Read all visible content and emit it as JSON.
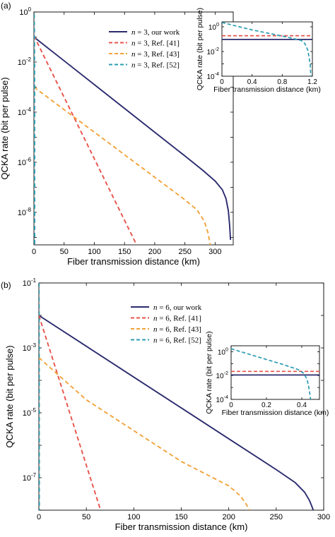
{
  "chart_data": [
    {
      "panel": "(a)",
      "type": "line",
      "xlabel": "Fiber transmission distance (km)",
      "ylabel": "QCKA rate (bit per pulse)",
      "xlim": [
        0,
        330
      ],
      "ylim_log10": [
        -9.3,
        0
      ],
      "log_y": true,
      "x_ticks": [
        0,
        50,
        100,
        150,
        200,
        250,
        300
      ],
      "y_ticks": [
        {
          "exp": 0,
          "label": "10^0"
        },
        {
          "exp": -2,
          "label": "10^-2"
        },
        {
          "exp": -4,
          "label": "10^-4"
        },
        {
          "exp": -6,
          "label": "10^-6"
        },
        {
          "exp": -8,
          "label": "10^-8"
        }
      ],
      "legend_position": "top-left",
      "series": [
        {
          "name": "n = 3, our work",
          "color": "#2a2a6e",
          "dash": false,
          "x": [
            0,
            50,
            100,
            150,
            200,
            250,
            280,
            300,
            312,
            318,
            322,
            324,
            325.5
          ],
          "log10_y": [
            -1.0,
            -1.95,
            -2.9,
            -3.85,
            -4.8,
            -5.75,
            -6.33,
            -6.75,
            -7.1,
            -7.45,
            -7.95,
            -8.5,
            -9.1
          ]
        },
        {
          "name": "n = 3, Ref. [41]",
          "color": "#e8534a",
          "dash": true,
          "x": [
            0,
            170
          ],
          "log10_y": [
            -0.95,
            -9.3
          ]
        },
        {
          "name": "n = 3, Ref. [43]",
          "color": "#f2a33a",
          "dash": true,
          "x": [
            0,
            100,
            200,
            250,
            270,
            282,
            288,
            292
          ],
          "log10_y": [
            -3.0,
            -4.8,
            -6.6,
            -7.5,
            -7.9,
            -8.35,
            -8.8,
            -9.3
          ]
        },
        {
          "name": "n = 3, Ref. [52]",
          "color": "#2a9db0",
          "dash": true,
          "x": [
            0.2,
            0.6,
            0.9,
            1.1,
            1.2
          ],
          "log10_y": [
            0.2,
            -0.4,
            -1.2,
            -3.0,
            -9.3
          ]
        }
      ],
      "inset": {
        "xlabel": "Fiber transmission distance (km)",
        "ylabel": "QCKA rate (bit per pulse)",
        "xlim": [
          0,
          1.2
        ],
        "x_ticks": [
          {
            "v": 0,
            "label": "0"
          },
          {
            "v": 0.4,
            "label": "0.4"
          },
          {
            "v": 0.8,
            "label": "0.8"
          },
          {
            "v": 1.2,
            "label": "1.2"
          }
        ],
        "ylim_log10": [
          -4,
          0.4
        ],
        "y_ticks": [
          {
            "exp": 0,
            "label": "10^0"
          },
          {
            "exp": -2,
            "label": "10^-2"
          },
          {
            "exp": -4,
            "label": "10^-4"
          }
        ],
        "series": [
          {
            "color": "#2a2a6e",
            "dash": false,
            "x": [
              0,
              1.2
            ],
            "log10_y": [
              -1.02,
              -1.02
            ]
          },
          {
            "color": "#e8534a",
            "dash": true,
            "x": [
              0,
              1.2
            ],
            "log10_y": [
              -0.72,
              -0.72
            ]
          },
          {
            "color": "#2a9db0",
            "dash": true,
            "x": [
              0,
              0.2,
              0.4,
              0.6,
              0.8,
              0.95,
              1.05,
              1.1,
              1.14,
              1.17,
              1.18
            ],
            "log10_y": [
              0.35,
              0.05,
              -0.25,
              -0.5,
              -0.75,
              -0.95,
              -1.1,
              -1.35,
              -1.9,
              -3.0,
              -4.0
            ]
          }
        ]
      }
    },
    {
      "panel": "(b)",
      "type": "line",
      "xlabel": "Fiber transmission distance (km)",
      "ylabel": "QCKA rate (bit per pulse)",
      "xlim": [
        0,
        300
      ],
      "ylim_log10": [
        -8,
        -1
      ],
      "log_y": true,
      "x_ticks": [
        0,
        50,
        100,
        150,
        200,
        250,
        300
      ],
      "y_ticks": [
        {
          "exp": -1,
          "label": "10^-1"
        },
        {
          "exp": -3,
          "label": "10^-3"
        },
        {
          "exp": -5,
          "label": "10^-5"
        },
        {
          "exp": -7,
          "label": "10^-7"
        }
      ],
      "legend_position": "top-center",
      "series": [
        {
          "name": "n = 6, our work",
          "color": "#2a2a6e",
          "dash": false,
          "x": [
            0,
            50,
            100,
            150,
            200,
            250,
            270,
            280,
            285,
            287.5,
            289
          ],
          "log10_y": [
            -2.0,
            -2.95,
            -3.9,
            -4.85,
            -5.8,
            -6.75,
            -7.15,
            -7.45,
            -7.7,
            -7.88,
            -8.0
          ]
        },
        {
          "name": "n = 6, Ref. [41]",
          "color": "#e8534a",
          "dash": true,
          "x": [
            0,
            65
          ],
          "log10_y": [
            -2.0,
            -8.0
          ]
        },
        {
          "name": "n = 6, Ref. [43]",
          "color": "#f2a33a",
          "dash": true,
          "x": [
            0,
            50,
            100,
            150,
            200,
            212,
            218,
            222
          ],
          "log10_y": [
            -3.3,
            -4.6,
            -5.55,
            -6.5,
            -7.25,
            -7.55,
            -7.8,
            -8.0
          ]
        },
        {
          "name": "n = 6, Ref. [52]",
          "color": "#2a9db0",
          "dash": true,
          "x": [
            0.15,
            0.3,
            0.45
          ],
          "log10_y": [
            -1.0,
            -2.5,
            -8.0
          ]
        }
      ],
      "inset": {
        "xlabel": "Fiber transmission distance (km)",
        "ylabel": "QCKA rate (bit per pulse)",
        "xlim": [
          0,
          0.5
        ],
        "x_ticks": [
          {
            "v": 0,
            "label": "0"
          },
          {
            "v": 0.2,
            "label": "0.2"
          },
          {
            "v": 0.4,
            "label": "0.4"
          }
        ],
        "ylim_log10": [
          -4,
          0.5
        ],
        "y_ticks": [
          {
            "exp": 0,
            "label": "10^0"
          },
          {
            "exp": -2,
            "label": "10^-2"
          },
          {
            "exp": -4,
            "label": "10^-4"
          }
        ],
        "series": [
          {
            "color": "#2a2a6e",
            "dash": false,
            "x": [
              0,
              0.5
            ],
            "log10_y": [
              -1.95,
              -1.95
            ]
          },
          {
            "color": "#e8534a",
            "dash": true,
            "x": [
              0,
              0.5
            ],
            "log10_y": [
              -1.65,
              -1.65
            ]
          },
          {
            "color": "#2a9db0",
            "dash": true,
            "x": [
              0,
              0.1,
              0.2,
              0.3,
              0.38,
              0.41,
              0.43,
              0.44,
              0.45
            ],
            "log10_y": [
              0.25,
              -0.2,
              -0.65,
              -1.1,
              -1.5,
              -1.8,
              -2.3,
              -3.0,
              -4.0
            ]
          }
        ]
      }
    }
  ]
}
